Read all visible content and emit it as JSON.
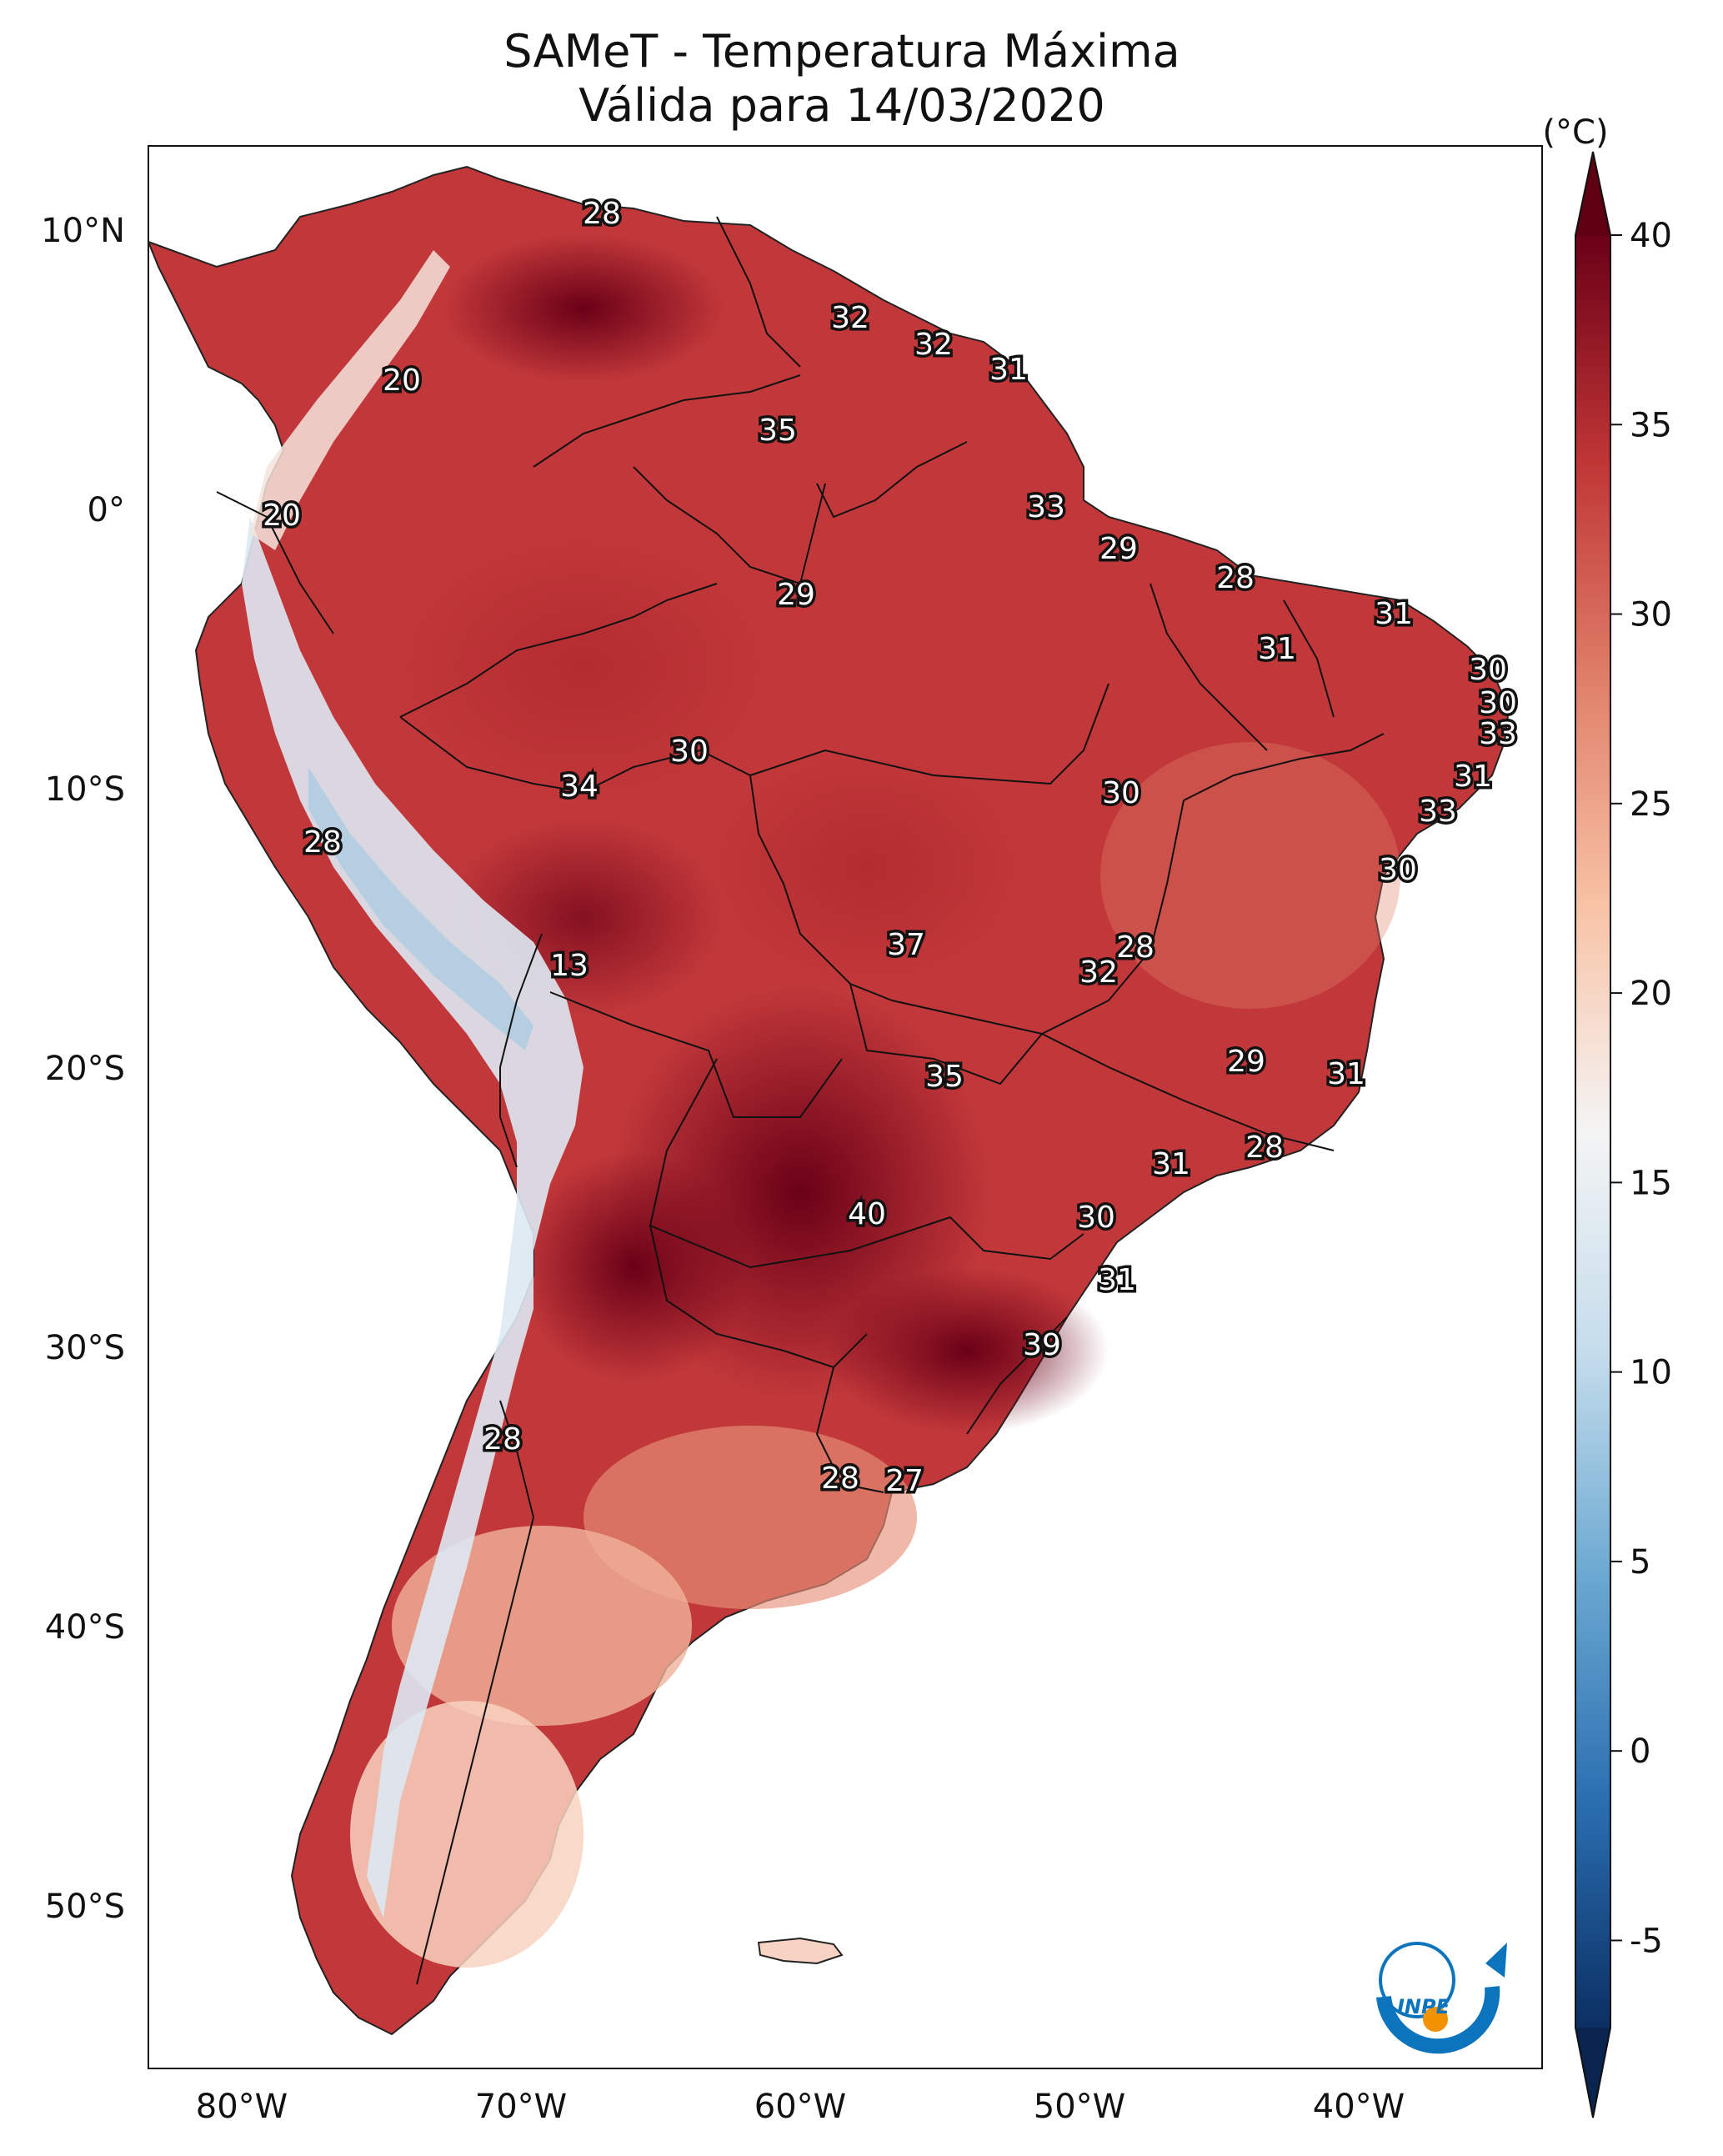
{
  "title_line1": "SAMeT - Temperatura Máxima",
  "title_line2": "Válida para 14/03/2020",
  "colorbar": {
    "unit": "(°C)",
    "ticks": [
      "40",
      "35",
      "30",
      "25",
      "20",
      "15",
      "10",
      "5",
      "0",
      "-5"
    ],
    "range": [
      -5,
      40
    ],
    "colors": [
      "#0b2f63",
      "#2a6eb0",
      "#6aa8d1",
      "#c4dcec",
      "#f4f4f4",
      "#f8c3a6",
      "#e0806a",
      "#bf3535",
      "#6a0017"
    ]
  },
  "axes": {
    "lat_labels": [
      "10°N",
      "0°",
      "10°S",
      "20°S",
      "30°S",
      "40°S",
      "50°S"
    ],
    "lon_labels": [
      "80°W",
      "70°W",
      "60°W",
      "50°W",
      "40°W"
    ]
  },
  "labels": [
    "28",
    "32",
    "32",
    "31",
    "20",
    "35",
    "20",
    "33",
    "29",
    "28",
    "29",
    "31",
    "31",
    "30",
    "30",
    "33",
    "30",
    "34",
    "30",
    "31",
    "33",
    "28",
    "30",
    "13",
    "37",
    "28",
    "32",
    "29",
    "31",
    "35",
    "31",
    "28",
    "40",
    "30",
    "31",
    "39",
    "28",
    "28",
    "27"
  ],
  "logo": {
    "text": "INPE",
    "colors": [
      "#0b74bc",
      "#f39200"
    ]
  }
}
